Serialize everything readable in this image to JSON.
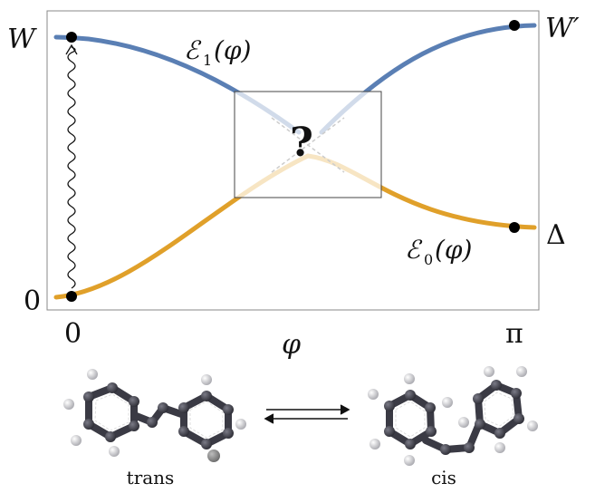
{
  "labels": {
    "y_top": "W",
    "y_right_top": "W′",
    "y_bottom": "0",
    "y_right_bottom": "Δ",
    "x_start": "0",
    "x_end": "π",
    "x_axis": "φ",
    "curve_upper_script": "ℰ",
    "curve_upper_sub": "1",
    "curve_upper_arg": "(φ)",
    "curve_lower_script": "ℰ",
    "curve_lower_sub": "0",
    "curve_lower_arg": "(φ)",
    "question": "?",
    "trans": "trans",
    "cis": "cis"
  },
  "colors": {
    "upper_curve": "#5a7fb4",
    "lower_curve": "#e0a02a",
    "frame": "#888888",
    "atom_carbon": "#3a3a44",
    "atom_hydrogen": "#f0f0f0"
  }
}
